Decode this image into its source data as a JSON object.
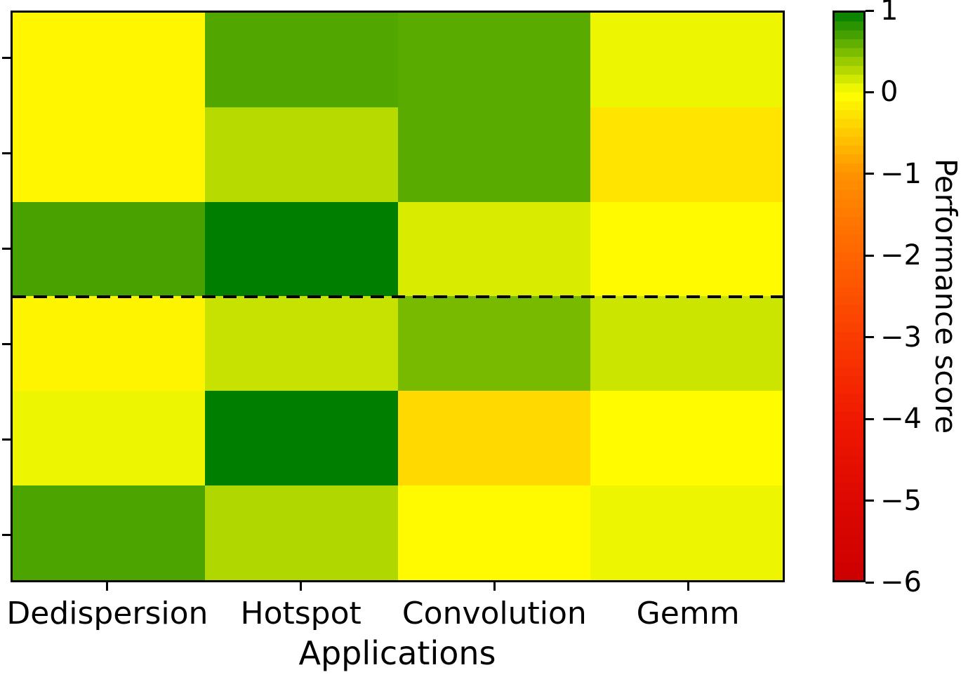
{
  "figure": {
    "background": "#ffffff",
    "axis_color": "#000000"
  },
  "chart_data": {
    "type": "heatmap",
    "title": "",
    "xlabel": "Applications",
    "ylabel": "",
    "x_categories": [
      "Dedispersion",
      "Hotspot",
      "Convolution",
      "Gemm"
    ],
    "n_rows": 6,
    "y_tick_labels": [
      "",
      "",
      "",
      "",
      "",
      ""
    ],
    "values": [
      [
        -0.08,
        0.68,
        0.65,
        0.07
      ],
      [
        -0.08,
        0.28,
        0.65,
        -0.25
      ],
      [
        0.72,
        1.0,
        0.15,
        -0.05
      ],
      [
        -0.1,
        0.22,
        0.53,
        0.2
      ],
      [
        0.07,
        1.0,
        -0.35,
        -0.03
      ],
      [
        0.7,
        0.31,
        -0.05,
        0.07
      ]
    ],
    "separator_line": {
      "after_row": 3,
      "style": "dashed",
      "color": "#000000"
    },
    "colorbar": {
      "label": "Performance score",
      "tick_labels": [
        "1",
        "0",
        "−1",
        "−2",
        "−3",
        "−4",
        "−5",
        "−6"
      ],
      "tick_values": [
        1,
        0,
        -1,
        -2,
        -3,
        -4,
        -5,
        -6
      ],
      "vmin": -6,
      "vmax": 1,
      "vcenter": 0,
      "position": "right"
    },
    "colormap_anchors": [
      {
        "value": 1,
        "color": "#007e00"
      },
      {
        "value": 0.5,
        "color": "#7fbe00"
      },
      {
        "value": 0,
        "color": "#ffff00"
      },
      {
        "value": -1,
        "color": "#ff9100"
      },
      {
        "value": -2,
        "color": "#ff6400"
      },
      {
        "value": -3,
        "color": "#fa3c00"
      },
      {
        "value": -4,
        "color": "#f01900"
      },
      {
        "value": -5,
        "color": "#dd0800"
      },
      {
        "value": -6,
        "color": "#cc0000"
      }
    ],
    "grid": false,
    "legend": "none"
  }
}
